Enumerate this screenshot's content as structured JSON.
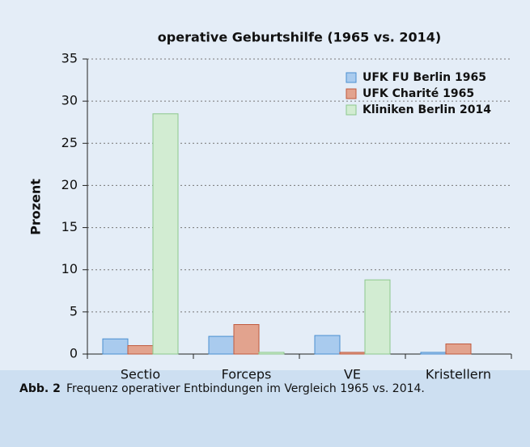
{
  "chart_data": {
    "type": "bar",
    "title": "operative Geburtshilfe (1965 vs. 2014)",
    "ylabel": "Prozent",
    "categories": [
      "Sectio",
      "Forceps",
      "VE",
      "Kristellern"
    ],
    "series": [
      {
        "name": "UFK FU Berlin 1965",
        "color": "#a9cbee",
        "values": [
          1.8,
          2.1,
          2.2,
          0.2
        ]
      },
      {
        "name": "UFK Charité 1965",
        "color": "#e2a38e",
        "values": [
          1.0,
          3.5,
          0.2,
          1.2
        ]
      },
      {
        "name": "Kliniken Berlin 2014",
        "color": "#d2ecd2",
        "values": [
          28.5,
          0.2,
          8.8,
          0
        ]
      }
    ],
    "ylim": [
      0,
      35
    ],
    "yticks": [
      0,
      5,
      10,
      15,
      20,
      25,
      30,
      35
    ],
    "grid": true,
    "legend": "upper right"
  },
  "caption": {
    "label": "Abb. 2",
    "text": "Frequenz operativer Entbindungen im Vergleich 1965 vs. 2014."
  }
}
